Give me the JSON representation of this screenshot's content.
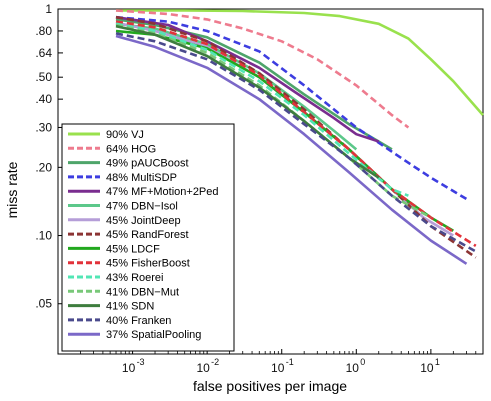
{
  "chart_data": {
    "type": "line",
    "title": "",
    "xlabel": "false positives per image",
    "ylabel": "miss rate",
    "xscale": "log",
    "yscale": "log",
    "xlim": [
      0.0001,
      50
    ],
    "ylim": [
      0.03,
      1
    ],
    "x_ticks": [
      {
        "value": 0.001,
        "label": "10",
        "exp": "-3"
      },
      {
        "value": 0.01,
        "label": "10",
        "exp": "-2"
      },
      {
        "value": 0.1,
        "label": "10",
        "exp": "-1"
      },
      {
        "value": 1,
        "label": "10",
        "exp": "0"
      },
      {
        "value": 10,
        "label": "10",
        "exp": "1"
      }
    ],
    "y_ticks": [
      {
        "value": 1,
        "label": "1"
      },
      {
        "value": 0.8,
        "label": ".80"
      },
      {
        "value": 0.64,
        "label": ".64"
      },
      {
        "value": 0.5,
        "label": ".50"
      },
      {
        "value": 0.4,
        "label": ".40"
      },
      {
        "value": 0.3,
        "label": ".30"
      },
      {
        "value": 0.2,
        "label": ".20"
      },
      {
        "value": 0.1,
        "label": ".10"
      },
      {
        "value": 0.05,
        "label": ".05"
      }
    ],
    "grid": false,
    "legend_position": "lower-left",
    "series": [
      {
        "name": "90% VJ",
        "color": "#99e14d",
        "dash": "solid",
        "x": [
          0.0006,
          0.005,
          0.03,
          0.2,
          0.6,
          2,
          5,
          10,
          20,
          50
        ],
        "y": [
          0.985,
          0.985,
          0.98,
          0.96,
          0.93,
          0.86,
          0.74,
          0.6,
          0.48,
          0.34
        ]
      },
      {
        "name": "64% HOG",
        "color": "#ee7b8e",
        "dash": "dashed",
        "x": [
          0.0006,
          0.003,
          0.01,
          0.03,
          0.1,
          0.3,
          1,
          3,
          5
        ],
        "y": [
          0.985,
          0.95,
          0.9,
          0.82,
          0.72,
          0.6,
          0.46,
          0.34,
          0.3
        ]
      },
      {
        "name": "49% pAUCBoost",
        "color": "#4ea56a",
        "dash": "solid",
        "x": [
          0.0006,
          0.002,
          0.01,
          0.05,
          0.2,
          0.8,
          2,
          3
        ],
        "y": [
          0.9,
          0.85,
          0.75,
          0.58,
          0.42,
          0.31,
          0.26,
          0.24
        ]
      },
      {
        "name": "48% MultiSDP",
        "color": "#3d3de0",
        "dash": "dashed",
        "x": [
          0.0006,
          0.003,
          0.01,
          0.05,
          0.2,
          1,
          4,
          10,
          30
        ],
        "y": [
          0.92,
          0.88,
          0.8,
          0.65,
          0.46,
          0.3,
          0.22,
          0.18,
          0.145
        ]
      },
      {
        "name": "47% MF+Motion+2Ped",
        "color": "#7a2d8f",
        "dash": "solid",
        "x": [
          0.0006,
          0.003,
          0.01,
          0.05,
          0.15,
          0.5,
          1,
          2
        ],
        "y": [
          0.92,
          0.85,
          0.72,
          0.55,
          0.43,
          0.33,
          0.28,
          0.26
        ]
      },
      {
        "name": "47% DBN−Isol",
        "color": "#5cc88a",
        "dash": "solid",
        "x": [
          0.0006,
          0.002,
          0.01,
          0.05,
          0.2,
          0.5,
          1
        ],
        "y": [
          0.86,
          0.82,
          0.7,
          0.52,
          0.37,
          0.29,
          0.24
        ]
      },
      {
        "name": "45% JointDeep",
        "color": "#b59ed8",
        "dash": "solid",
        "x": [
          0.0006,
          0.002,
          0.01,
          0.05,
          0.2,
          0.8,
          3,
          8,
          20
        ],
        "y": [
          0.87,
          0.8,
          0.68,
          0.5,
          0.35,
          0.24,
          0.16,
          0.12,
          0.1
        ]
      },
      {
        "name": "45% RandForest",
        "color": "#8c3434",
        "dash": "dashed",
        "x": [
          0.0006,
          0.002,
          0.01,
          0.05,
          0.2,
          0.8,
          3,
          10,
          40
        ],
        "y": [
          0.92,
          0.86,
          0.72,
          0.52,
          0.36,
          0.24,
          0.16,
          0.11,
          0.08
        ]
      },
      {
        "name": "45% LDCF",
        "color": "#22a81e",
        "dash": "solid",
        "x": [
          0.0006,
          0.002,
          0.01,
          0.05,
          0.2,
          0.8,
          3,
          10,
          20
        ],
        "y": [
          0.8,
          0.77,
          0.67,
          0.5,
          0.35,
          0.24,
          0.16,
          0.12,
          0.105
        ]
      },
      {
        "name": "45% FisherBoost",
        "color": "#e2323a",
        "dash": "dashed",
        "x": [
          0.0006,
          0.002,
          0.01,
          0.05,
          0.2,
          0.8,
          3,
          10,
          40
        ],
        "y": [
          0.88,
          0.83,
          0.7,
          0.51,
          0.35,
          0.24,
          0.16,
          0.12,
          0.09
        ]
      },
      {
        "name": "43% Roerei",
        "color": "#52e6b4",
        "dash": "dashed",
        "x": [
          0.0006,
          0.002,
          0.01,
          0.05,
          0.2,
          0.8,
          3,
          5
        ],
        "y": [
          0.86,
          0.8,
          0.66,
          0.48,
          0.34,
          0.23,
          0.16,
          0.15
        ]
      },
      {
        "name": "41% DBN−Mut",
        "color": "#78c878",
        "dash": "dashed",
        "x": [
          0.0006,
          0.002,
          0.01,
          0.05,
          0.2,
          0.8,
          3,
          10
        ],
        "y": [
          0.85,
          0.78,
          0.64,
          0.46,
          0.32,
          0.22,
          0.15,
          0.12
        ]
      },
      {
        "name": "41% SDN",
        "color": "#3e7d3e",
        "dash": "solid",
        "x": [
          0.0006,
          0.002,
          0.01,
          0.05,
          0.2,
          0.8,
          2
        ],
        "y": [
          0.84,
          0.77,
          0.62,
          0.45,
          0.32,
          0.22,
          0.18
        ]
      },
      {
        "name": "40% Franken",
        "color": "#4a4a8c",
        "dash": "dashed",
        "x": [
          0.0006,
          0.002,
          0.01,
          0.05,
          0.2,
          0.8,
          3,
          10,
          40
        ],
        "y": [
          0.78,
          0.72,
          0.6,
          0.44,
          0.31,
          0.22,
          0.15,
          0.11,
          0.085
        ]
      },
      {
        "name": "37% SpatialPooling",
        "color": "#7b68c8",
        "dash": "solid",
        "x": [
          0.0006,
          0.002,
          0.01,
          0.05,
          0.2,
          0.8,
          3,
          10,
          30
        ],
        "y": [
          0.76,
          0.68,
          0.55,
          0.4,
          0.28,
          0.19,
          0.13,
          0.095,
          0.075
        ]
      }
    ]
  }
}
